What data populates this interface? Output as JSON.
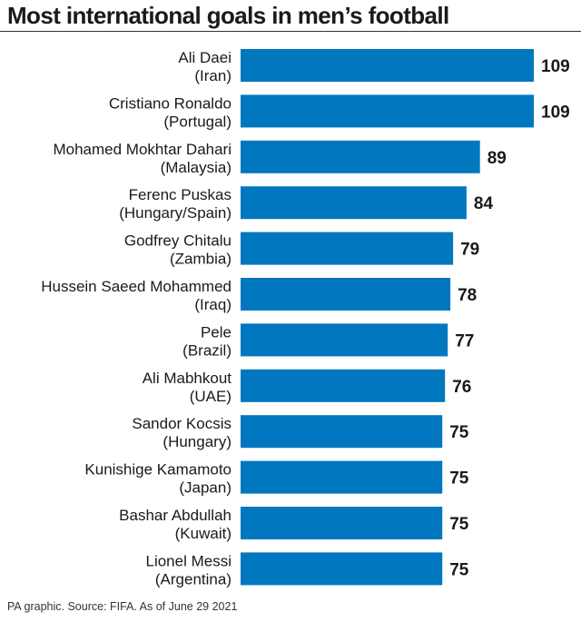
{
  "chart_data": {
    "type": "bar",
    "orientation": "horizontal",
    "title": "Most international goals in men’s football",
    "bar_color": "#0077be",
    "categories": [
      {
        "name": "Ali Daei",
        "country": "(Iran)"
      },
      {
        "name": "Cristiano Ronaldo",
        "country": "(Portugal)"
      },
      {
        "name": "Mohamed Mokhtar Dahari",
        "country": "(Malaysia)"
      },
      {
        "name": "Ferenc Puskas",
        "country": "(Hungary/Spain)"
      },
      {
        "name": "Godfrey Chitalu",
        "country": "(Zambia)"
      },
      {
        "name": "Hussein Saeed Mohammed",
        "country": "(Iraq)"
      },
      {
        "name": "Pele",
        "country": "(Brazil)"
      },
      {
        "name": "Ali Mabhkout",
        "country": "(UAE)"
      },
      {
        "name": "Sandor Kocsis",
        "country": "(Hungary)"
      },
      {
        "name": "Kunishige Kamamoto",
        "country": "(Japan)"
      },
      {
        "name": "Bashar Abdullah",
        "country": "(Kuwait)"
      },
      {
        "name": "Lionel Messi",
        "country": "(Argentina)"
      }
    ],
    "values": [
      109,
      109,
      89,
      84,
      79,
      78,
      77,
      76,
      75,
      75,
      75,
      75
    ],
    "source": "PA graphic. Source: FIFA. As of June 29 2021"
  }
}
